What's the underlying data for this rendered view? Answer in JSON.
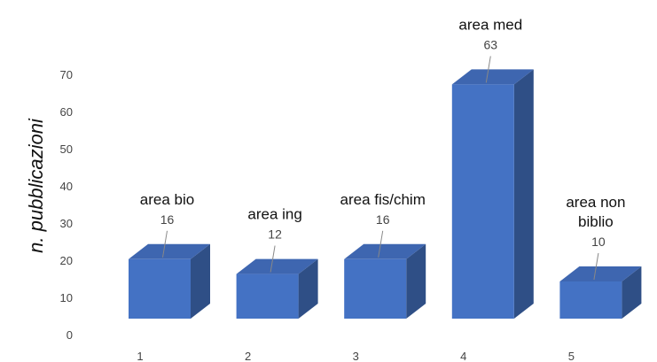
{
  "chart_data": {
    "type": "bar",
    "categories": [
      "1",
      "2",
      "3",
      "4",
      "5"
    ],
    "values": [
      16,
      12,
      16,
      63,
      10
    ],
    "data_labels": [
      [
        "area bio"
      ],
      [
        "area ing"
      ],
      [
        "area fis/chim"
      ],
      [
        "area med"
      ],
      [
        "area non",
        "biblio"
      ]
    ],
    "title": "",
    "xlabel": "",
    "ylabel": "n. pubblicazioni",
    "ylim": [
      0,
      70
    ],
    "yticks": [
      0,
      10,
      20,
      30,
      40,
      50,
      60,
      70
    ],
    "grid": false,
    "legend": "none",
    "style": "3d-column",
    "colors": {
      "front": "#4472C4",
      "side": "#2F4F86",
      "top": "#3E66B0",
      "leader": "#888888"
    }
  }
}
